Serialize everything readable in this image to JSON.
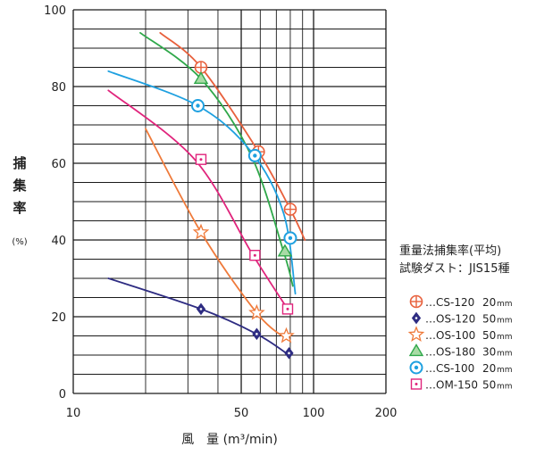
{
  "chart_data": {
    "type": "line",
    "title": "",
    "xlabel": "風　量 (m³/min)",
    "ylabel_chars": [
      "捕",
      "集",
      "率"
    ],
    "ylabel_unit": "(%)",
    "xscale": "log",
    "xlim": [
      10,
      200
    ],
    "ylim": [
      0,
      100
    ],
    "xticks": [
      10,
      50,
      100,
      200
    ],
    "yticks": [
      0,
      20,
      40,
      60,
      80,
      100
    ],
    "grid": true,
    "legend_title": [
      "重量法捕集率(平均)",
      "試験ダスト：JIS15種"
    ],
    "legend_position": "right",
    "series": [
      {
        "name": "CS-120",
        "size": "20",
        "unit": "mm",
        "color": "#e8603c",
        "marker": "circle-cross",
        "curve": [
          [
            23,
            94
          ],
          [
            34,
            85
          ],
          [
            59,
            63
          ],
          [
            80,
            48
          ],
          [
            92,
            40
          ]
        ],
        "markers": [
          [
            34,
            85
          ],
          [
            59,
            63
          ],
          [
            80,
            48
          ]
        ]
      },
      {
        "name": "OS-120",
        "size": "50",
        "unit": "mm",
        "color": "#2e2c82",
        "marker": "diamond",
        "curve": [
          [
            14,
            30
          ],
          [
            34,
            22
          ],
          [
            58,
            15.5
          ],
          [
            79,
            10
          ]
        ],
        "markers": [
          [
            34,
            22
          ],
          [
            58,
            15.5
          ],
          [
            79,
            10.5
          ]
        ]
      },
      {
        "name": "OS-100",
        "size": "50",
        "unit": "mm",
        "color": "#ef7a3a",
        "marker": "star",
        "curve": [
          [
            20,
            69
          ],
          [
            34,
            42
          ],
          [
            58,
            21
          ],
          [
            78,
            14
          ]
        ],
        "markers": [
          [
            34,
            42
          ],
          [
            58,
            21
          ],
          [
            77,
            15
          ]
        ]
      },
      {
        "name": "OS-180",
        "size": "30",
        "unit": "mm",
        "color": "#2fa84a",
        "marker": "triangle",
        "curve": [
          [
            19,
            94
          ],
          [
            34,
            82
          ],
          [
            55,
            62
          ],
          [
            75,
            37
          ],
          [
            82,
            28
          ]
        ],
        "markers": [
          [
            34,
            82
          ],
          [
            76,
            37
          ]
        ]
      },
      {
        "name": "CS-100",
        "size": "20",
        "unit": "mm",
        "color": "#1ea0e0",
        "marker": "circle-dot",
        "curve": [
          [
            14,
            84
          ],
          [
            33,
            75
          ],
          [
            55,
            63
          ],
          [
            75,
            47
          ],
          [
            84,
            26
          ]
        ],
        "markers": [
          [
            33,
            75
          ],
          [
            57,
            62
          ],
          [
            80,
            40.5
          ]
        ]
      },
      {
        "name": "OM-150",
        "size": "50",
        "unit": "mm",
        "color": "#e0247c",
        "marker": "square-dot",
        "curve": [
          [
            14,
            79
          ],
          [
            32,
            61
          ],
          [
            56,
            36
          ],
          [
            78,
            22
          ]
        ],
        "markers": [
          [
            34,
            61
          ],
          [
            57,
            36
          ],
          [
            78,
            22
          ]
        ]
      }
    ]
  }
}
